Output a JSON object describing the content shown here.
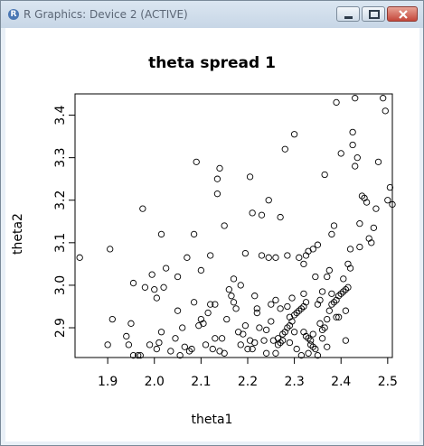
{
  "window": {
    "title": "R Graphics: Device 2 (ACTIVE)",
    "app_icon": "R"
  },
  "chart_data": {
    "type": "scatter",
    "title": "theta spread 1",
    "xlabel": "theta1",
    "ylabel": "theta2",
    "xlim": [
      1.83,
      2.51
    ],
    "ylim": [
      2.83,
      3.45
    ],
    "xticks": [
      "1.9",
      "2.0",
      "2.1",
      "2.2",
      "2.3",
      "2.4",
      "2.5"
    ],
    "yticks": [
      "2.9",
      "3.0",
      "3.1",
      "3.2",
      "3.3",
      "3.4"
    ],
    "xtick_values": [
      1.9,
      2.0,
      2.1,
      2.2,
      2.3,
      2.4,
      2.5
    ],
    "ytick_values": [
      2.9,
      3.0,
      3.1,
      3.2,
      3.3,
      3.4
    ],
    "points": [
      [
        1.84,
        3.065
      ],
      [
        1.9,
        2.86
      ],
      [
        1.905,
        3.085
      ],
      [
        1.91,
        2.92
      ],
      [
        1.94,
        2.88
      ],
      [
        1.945,
        2.86
      ],
      [
        1.95,
        2.91
      ],
      [
        1.955,
        2.835
      ],
      [
        1.955,
        3.005
      ],
      [
        1.965,
        2.835
      ],
      [
        1.97,
        2.835
      ],
      [
        1.975,
        3.18
      ],
      [
        1.98,
        2.995
      ],
      [
        1.99,
        2.86
      ],
      [
        1.995,
        3.025
      ],
      [
        2.0,
        2.99
      ],
      [
        2.005,
        2.97
      ],
      [
        2.005,
        2.85
      ],
      [
        2.01,
        2.865
      ],
      [
        2.015,
        2.89
      ],
      [
        2.015,
        3.12
      ],
      [
        2.02,
        2.995
      ],
      [
        2.025,
        3.04
      ],
      [
        2.035,
        2.845
      ],
      [
        2.045,
        2.875
      ],
      [
        2.05,
        3.02
      ],
      [
        2.05,
        2.94
      ],
      [
        2.055,
        2.835
      ],
      [
        2.06,
        2.9
      ],
      [
        2.065,
        2.855
      ],
      [
        2.07,
        3.065
      ],
      [
        2.075,
        2.845
      ],
      [
        2.08,
        2.85
      ],
      [
        2.085,
        2.96
      ],
      [
        2.085,
        3.12
      ],
      [
        2.09,
        3.29
      ],
      [
        2.095,
        2.905
      ],
      [
        2.1,
        3.035
      ],
      [
        2.1,
        2.92
      ],
      [
        2.105,
        2.91
      ],
      [
        2.11,
        2.86
      ],
      [
        2.115,
        2.935
      ],
      [
        2.12,
        2.955
      ],
      [
        2.12,
        3.07
      ],
      [
        2.125,
        2.85
      ],
      [
        2.13,
        2.955
      ],
      [
        2.13,
        2.875
      ],
      [
        2.135,
        3.215
      ],
      [
        2.135,
        3.25
      ],
      [
        2.14,
        3.275
      ],
      [
        2.14,
        2.845
      ],
      [
        2.145,
        2.875
      ],
      [
        2.15,
        3.14
      ],
      [
        2.15,
        2.84
      ],
      [
        2.155,
        2.92
      ],
      [
        2.16,
        2.99
      ],
      [
        2.165,
        2.975
      ],
      [
        2.17,
        3.015
      ],
      [
        2.17,
        2.96
      ],
      [
        2.175,
        2.945
      ],
      [
        2.18,
        2.89
      ],
      [
        2.185,
        2.86
      ],
      [
        2.185,
        3.0
      ],
      [
        2.19,
        2.885
      ],
      [
        2.195,
        3.075
      ],
      [
        2.195,
        2.905
      ],
      [
        2.2,
        2.85
      ],
      [
        2.205,
        2.87
      ],
      [
        2.205,
        3.255
      ],
      [
        2.21,
        2.85
      ],
      [
        2.21,
        3.17
      ],
      [
        2.215,
        2.975
      ],
      [
        2.215,
        2.865
      ],
      [
        2.22,
        2.945
      ],
      [
        2.22,
        2.935
      ],
      [
        2.225,
        2.9
      ],
      [
        2.23,
        3.07
      ],
      [
        2.23,
        3.165
      ],
      [
        2.235,
        2.87
      ],
      [
        2.24,
        2.84
      ],
      [
        2.24,
        2.895
      ],
      [
        2.245,
        3.2
      ],
      [
        2.245,
        3.065
      ],
      [
        2.25,
        2.955
      ],
      [
        2.25,
        2.915
      ],
      [
        2.255,
        2.87
      ],
      [
        2.26,
        2.965
      ],
      [
        2.26,
        3.065
      ],
      [
        2.265,
        2.875
      ],
      [
        2.27,
        2.945
      ],
      [
        2.27,
        3.16
      ],
      [
        2.275,
        2.87
      ],
      [
        2.28,
        3.32
      ],
      [
        2.285,
        2.95
      ],
      [
        2.285,
        3.07
      ],
      [
        2.29,
        2.865
      ],
      [
        2.29,
        2.925
      ],
      [
        2.295,
        2.97
      ],
      [
        2.3,
        3.355
      ],
      [
        2.3,
        2.89
      ],
      [
        2.305,
        2.85
      ],
      [
        2.31,
        3.065
      ],
      [
        2.315,
        2.835
      ],
      [
        2.32,
        3.05
      ],
      [
        2.32,
        2.98
      ],
      [
        2.325,
        3.07
      ],
      [
        2.33,
        2.84
      ],
      [
        2.33,
        3.08
      ],
      [
        2.335,
        2.87
      ],
      [
        2.34,
        3.085
      ],
      [
        2.34,
        2.885
      ],
      [
        2.345,
        3.02
      ],
      [
        2.35,
        3.095
      ],
      [
        2.35,
        2.835
      ],
      [
        2.355,
        2.91
      ],
      [
        2.36,
        2.875
      ],
      [
        2.36,
        2.895
      ],
      [
        2.365,
        3.26
      ],
      [
        2.37,
        2.855
      ],
      [
        2.37,
        3.02
      ],
      [
        2.375,
        3.035
      ],
      [
        2.38,
        2.98
      ],
      [
        2.38,
        3.12
      ],
      [
        2.385,
        3.14
      ],
      [
        2.39,
        2.925
      ],
      [
        2.39,
        3.43
      ],
      [
        2.395,
        2.925
      ],
      [
        2.4,
        3.31
      ],
      [
        2.405,
        3.015
      ],
      [
        2.41,
        2.94
      ],
      [
        2.41,
        2.87
      ],
      [
        2.415,
        3.05
      ],
      [
        2.42,
        3.085
      ],
      [
        2.42,
        3.04
      ],
      [
        2.425,
        3.33
      ],
      [
        2.425,
        3.36
      ],
      [
        2.43,
        3.44
      ],
      [
        2.43,
        3.28
      ],
      [
        2.435,
        3.3
      ],
      [
        2.44,
        3.145
      ],
      [
        2.44,
        3.09
      ],
      [
        2.445,
        3.21
      ],
      [
        2.45,
        3.205
      ],
      [
        2.455,
        3.195
      ],
      [
        2.46,
        3.11
      ],
      [
        2.465,
        3.1
      ],
      [
        2.47,
        3.135
      ],
      [
        2.475,
        3.18
      ],
      [
        2.48,
        3.29
      ],
      [
        2.49,
        3.44
      ],
      [
        2.495,
        3.41
      ],
      [
        2.5,
        3.2
      ],
      [
        2.505,
        3.23
      ],
      [
        2.51,
        3.19
      ],
      [
        2.515,
        3.375
      ],
      [
        2.52,
        3.31
      ],
      [
        2.525,
        3.31
      ],
      [
        2.35,
        2.955
      ],
      [
        2.355,
        2.965
      ],
      [
        2.36,
        2.985
      ],
      [
        2.365,
        2.9
      ],
      [
        2.37,
        2.92
      ],
      [
        2.375,
        2.94
      ],
      [
        2.38,
        2.955
      ],
      [
        2.385,
        2.96
      ],
      [
        2.39,
        2.965
      ],
      [
        2.395,
        2.975
      ],
      [
        2.4,
        2.98
      ],
      [
        2.405,
        2.985
      ],
      [
        2.41,
        2.99
      ],
      [
        2.415,
        2.995
      ],
      [
        2.32,
        2.89
      ],
      [
        2.325,
        2.88
      ],
      [
        2.33,
        2.875
      ],
      [
        2.335,
        2.86
      ],
      [
        2.34,
        2.855
      ],
      [
        2.345,
        2.85
      ],
      [
        2.26,
        2.84
      ],
      [
        2.265,
        2.86
      ],
      [
        2.27,
        2.865
      ],
      [
        2.275,
        2.885
      ],
      [
        2.28,
        2.89
      ],
      [
        2.285,
        2.9
      ],
      [
        2.29,
        2.905
      ],
      [
        2.295,
        2.915
      ],
      [
        2.3,
        2.93
      ],
      [
        2.305,
        2.935
      ],
      [
        2.31,
        2.94
      ],
      [
        2.315,
        2.945
      ],
      [
        2.32,
        2.95
      ],
      [
        2.325,
        2.96
      ]
    ]
  }
}
